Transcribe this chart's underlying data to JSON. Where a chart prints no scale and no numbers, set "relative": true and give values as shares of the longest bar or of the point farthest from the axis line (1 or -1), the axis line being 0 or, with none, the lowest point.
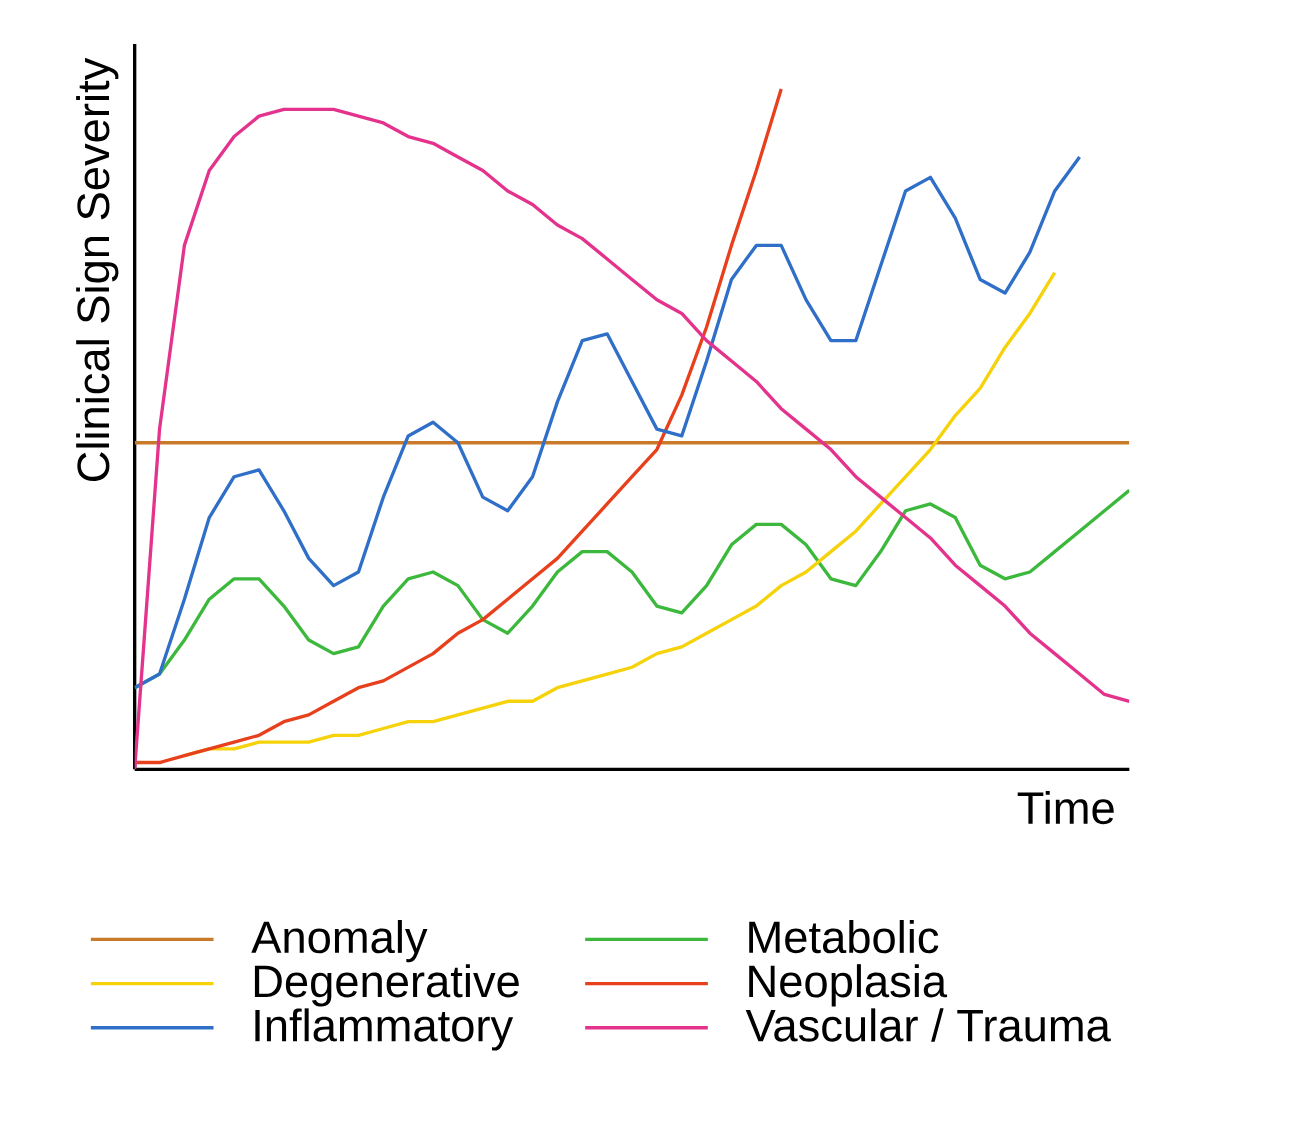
{
  "chart_data": {
    "type": "line",
    "xlabel": "Time",
    "ylabel": "Clinical Sign Severity",
    "relative": true,
    "legend": "bottom",
    "marker": "none",
    "line_style": "solid",
    "categories": [
      null,
      null,
      null,
      null,
      null,
      null,
      null,
      null,
      null,
      null,
      null,
      null,
      null,
      null,
      null,
      null,
      null,
      null,
      null,
      null,
      null,
      null,
      null,
      null,
      null,
      null,
      null,
      null,
      null,
      null,
      null,
      null,
      null,
      null,
      null,
      null,
      null,
      null,
      null,
      null,
      null
    ],
    "series": [
      {
        "name": "Anomaly",
        "color": "#c87a2a",
        "values": [
          0.48,
          0.48,
          0.48,
          0.48,
          0.48,
          0.48,
          0.48,
          0.48,
          0.48,
          0.48,
          0.48,
          0.48,
          0.48,
          0.48,
          0.48,
          0.48,
          0.48,
          0.48,
          0.48,
          0.48,
          0.48,
          0.48,
          0.48,
          0.48,
          0.48,
          0.48,
          0.48,
          0.48,
          0.48,
          0.48,
          0.48,
          0.48,
          0.48,
          0.48,
          0.48,
          0.48,
          0.48,
          0.48,
          0.48,
          0.48,
          0.48
        ]
      },
      {
        "name": "Metabolic",
        "color": "#3cb83c",
        "values": [
          0.12,
          0.14,
          0.19,
          0.25,
          0.28,
          0.28,
          0.24,
          0.19,
          0.17,
          0.18,
          0.24,
          0.28,
          0.29,
          0.27,
          0.22,
          0.2,
          0.24,
          0.29,
          0.32,
          0.32,
          0.29,
          0.24,
          0.23,
          0.27,
          0.33,
          0.36,
          0.36,
          0.33,
          0.28,
          0.27,
          0.32,
          0.38,
          0.39,
          0.37,
          0.3,
          0.28,
          0.29,
          0.32,
          0.35,
          0.38,
          0.41
        ]
      },
      {
        "name": "Degenerative",
        "color": "#f5d20a",
        "values": [
          null,
          null,
          0.02,
          0.03,
          0.03,
          0.04,
          0.04,
          0.04,
          0.05,
          0.05,
          0.06,
          0.07,
          0.07,
          0.08,
          0.09,
          0.1,
          0.1,
          0.12,
          0.13,
          0.14,
          0.15,
          0.17,
          0.18,
          0.2,
          0.22,
          0.24,
          0.27,
          0.29,
          0.32,
          0.35,
          0.39,
          0.43,
          0.47,
          0.52,
          0.56,
          0.62,
          0.67,
          0.73,
          null,
          null,
          null
        ]
      },
      {
        "name": "Neoplasia",
        "color": "#e8401c",
        "values": [
          0.01,
          0.01,
          0.02,
          0.03,
          0.04,
          0.05,
          0.07,
          0.08,
          0.1,
          0.12,
          0.13,
          0.15,
          0.17,
          0.2,
          0.22,
          0.25,
          0.28,
          0.31,
          0.35,
          0.39,
          0.43,
          0.47,
          0.55,
          0.65,
          0.77,
          0.88,
          1,
          null,
          null,
          null,
          null,
          null,
          null,
          null,
          null,
          null,
          null,
          null,
          null,
          null,
          null
        ]
      },
      {
        "name": "Inflammatory",
        "color": "#2f6fc8",
        "values": [
          0.12,
          0.14,
          0.25,
          0.37,
          0.43,
          0.44,
          0.38,
          0.31,
          0.27,
          0.29,
          0.4,
          0.49,
          0.51,
          0.48,
          0.4,
          0.38,
          0.43,
          0.54,
          0.63,
          0.64,
          0.57,
          0.5,
          0.49,
          0.6,
          0.72,
          0.77,
          0.77,
          0.69,
          0.63,
          0.63,
          0.74,
          0.85,
          0.87,
          0.81,
          0.72,
          0.7,
          0.76,
          0.85,
          0.9,
          null,
          null
        ]
      },
      {
        "name": "Vascular / Trauma",
        "color": "#e4338c",
        "values": [
          0,
          0.5,
          0.77,
          0.88,
          0.93,
          0.96,
          0.97,
          0.97,
          0.97,
          0.96,
          0.95,
          0.93,
          0.92,
          0.9,
          0.88,
          0.85,
          0.83,
          0.8,
          0.78,
          0.75,
          0.72,
          0.69,
          0.67,
          0.63,
          0.6,
          0.57,
          0.53,
          0.5,
          0.47,
          0.43,
          0.4,
          0.37,
          0.34,
          0.3,
          0.27,
          0.24,
          0.2,
          0.17,
          0.14,
          0.11,
          0.1
        ]
      }
    ]
  }
}
